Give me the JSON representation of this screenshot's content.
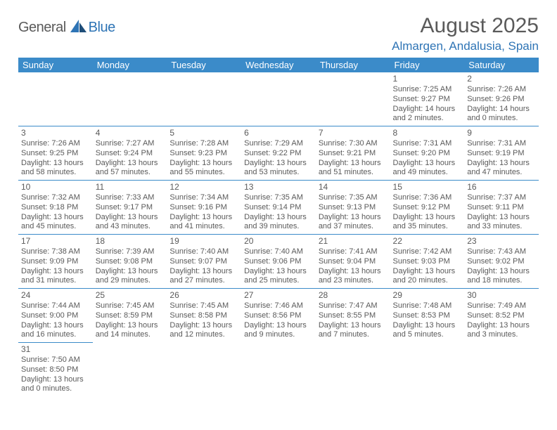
{
  "brand": {
    "word1": "General",
    "word2": "Blue"
  },
  "title": "August 2025",
  "location": "Almargen, Andalusia, Spain",
  "colors": {
    "header_bg": "#3b8bc9",
    "header_text": "#ffffff",
    "rule": "#3b8bc9",
    "body_text": "#5a5a5a",
    "accent": "#2e74b5",
    "page_bg": "#ffffff"
  },
  "weekdays": [
    "Sunday",
    "Monday",
    "Tuesday",
    "Wednesday",
    "Thursday",
    "Friday",
    "Saturday"
  ],
  "weeks": [
    [
      null,
      null,
      null,
      null,
      null,
      {
        "n": "1",
        "sr": "Sunrise: 7:25 AM",
        "ss": "Sunset: 9:27 PM",
        "dl": "Daylight: 14 hours and 2 minutes."
      },
      {
        "n": "2",
        "sr": "Sunrise: 7:26 AM",
        "ss": "Sunset: 9:26 PM",
        "dl": "Daylight: 14 hours and 0 minutes."
      }
    ],
    [
      {
        "n": "3",
        "sr": "Sunrise: 7:26 AM",
        "ss": "Sunset: 9:25 PM",
        "dl": "Daylight: 13 hours and 58 minutes."
      },
      {
        "n": "4",
        "sr": "Sunrise: 7:27 AM",
        "ss": "Sunset: 9:24 PM",
        "dl": "Daylight: 13 hours and 57 minutes."
      },
      {
        "n": "5",
        "sr": "Sunrise: 7:28 AM",
        "ss": "Sunset: 9:23 PM",
        "dl": "Daylight: 13 hours and 55 minutes."
      },
      {
        "n": "6",
        "sr": "Sunrise: 7:29 AM",
        "ss": "Sunset: 9:22 PM",
        "dl": "Daylight: 13 hours and 53 minutes."
      },
      {
        "n": "7",
        "sr": "Sunrise: 7:30 AM",
        "ss": "Sunset: 9:21 PM",
        "dl": "Daylight: 13 hours and 51 minutes."
      },
      {
        "n": "8",
        "sr": "Sunrise: 7:31 AM",
        "ss": "Sunset: 9:20 PM",
        "dl": "Daylight: 13 hours and 49 minutes."
      },
      {
        "n": "9",
        "sr": "Sunrise: 7:31 AM",
        "ss": "Sunset: 9:19 PM",
        "dl": "Daylight: 13 hours and 47 minutes."
      }
    ],
    [
      {
        "n": "10",
        "sr": "Sunrise: 7:32 AM",
        "ss": "Sunset: 9:18 PM",
        "dl": "Daylight: 13 hours and 45 minutes."
      },
      {
        "n": "11",
        "sr": "Sunrise: 7:33 AM",
        "ss": "Sunset: 9:17 PM",
        "dl": "Daylight: 13 hours and 43 minutes."
      },
      {
        "n": "12",
        "sr": "Sunrise: 7:34 AM",
        "ss": "Sunset: 9:16 PM",
        "dl": "Daylight: 13 hours and 41 minutes."
      },
      {
        "n": "13",
        "sr": "Sunrise: 7:35 AM",
        "ss": "Sunset: 9:14 PM",
        "dl": "Daylight: 13 hours and 39 minutes."
      },
      {
        "n": "14",
        "sr": "Sunrise: 7:35 AM",
        "ss": "Sunset: 9:13 PM",
        "dl": "Daylight: 13 hours and 37 minutes."
      },
      {
        "n": "15",
        "sr": "Sunrise: 7:36 AM",
        "ss": "Sunset: 9:12 PM",
        "dl": "Daylight: 13 hours and 35 minutes."
      },
      {
        "n": "16",
        "sr": "Sunrise: 7:37 AM",
        "ss": "Sunset: 9:11 PM",
        "dl": "Daylight: 13 hours and 33 minutes."
      }
    ],
    [
      {
        "n": "17",
        "sr": "Sunrise: 7:38 AM",
        "ss": "Sunset: 9:09 PM",
        "dl": "Daylight: 13 hours and 31 minutes."
      },
      {
        "n": "18",
        "sr": "Sunrise: 7:39 AM",
        "ss": "Sunset: 9:08 PM",
        "dl": "Daylight: 13 hours and 29 minutes."
      },
      {
        "n": "19",
        "sr": "Sunrise: 7:40 AM",
        "ss": "Sunset: 9:07 PM",
        "dl": "Daylight: 13 hours and 27 minutes."
      },
      {
        "n": "20",
        "sr": "Sunrise: 7:40 AM",
        "ss": "Sunset: 9:06 PM",
        "dl": "Daylight: 13 hours and 25 minutes."
      },
      {
        "n": "21",
        "sr": "Sunrise: 7:41 AM",
        "ss": "Sunset: 9:04 PM",
        "dl": "Daylight: 13 hours and 23 minutes."
      },
      {
        "n": "22",
        "sr": "Sunrise: 7:42 AM",
        "ss": "Sunset: 9:03 PM",
        "dl": "Daylight: 13 hours and 20 minutes."
      },
      {
        "n": "23",
        "sr": "Sunrise: 7:43 AM",
        "ss": "Sunset: 9:02 PM",
        "dl": "Daylight: 13 hours and 18 minutes."
      }
    ],
    [
      {
        "n": "24",
        "sr": "Sunrise: 7:44 AM",
        "ss": "Sunset: 9:00 PM",
        "dl": "Daylight: 13 hours and 16 minutes."
      },
      {
        "n": "25",
        "sr": "Sunrise: 7:45 AM",
        "ss": "Sunset: 8:59 PM",
        "dl": "Daylight: 13 hours and 14 minutes."
      },
      {
        "n": "26",
        "sr": "Sunrise: 7:45 AM",
        "ss": "Sunset: 8:58 PM",
        "dl": "Daylight: 13 hours and 12 minutes."
      },
      {
        "n": "27",
        "sr": "Sunrise: 7:46 AM",
        "ss": "Sunset: 8:56 PM",
        "dl": "Daylight: 13 hours and 9 minutes."
      },
      {
        "n": "28",
        "sr": "Sunrise: 7:47 AM",
        "ss": "Sunset: 8:55 PM",
        "dl": "Daylight: 13 hours and 7 minutes."
      },
      {
        "n": "29",
        "sr": "Sunrise: 7:48 AM",
        "ss": "Sunset: 8:53 PM",
        "dl": "Daylight: 13 hours and 5 minutes."
      },
      {
        "n": "30",
        "sr": "Sunrise: 7:49 AM",
        "ss": "Sunset: 8:52 PM",
        "dl": "Daylight: 13 hours and 3 minutes."
      }
    ],
    [
      {
        "n": "31",
        "sr": "Sunrise: 7:50 AM",
        "ss": "Sunset: 8:50 PM",
        "dl": "Daylight: 13 hours and 0 minutes."
      },
      null,
      null,
      null,
      null,
      null,
      null
    ]
  ]
}
